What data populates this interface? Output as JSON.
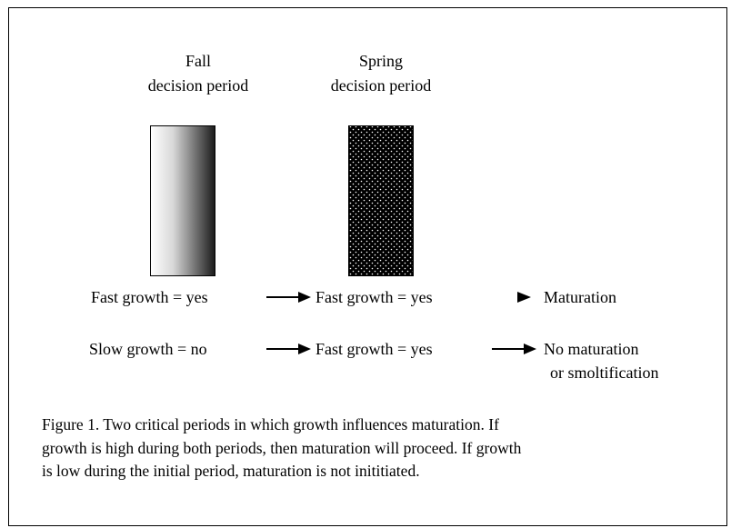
{
  "periods": [
    {
      "title": "Fall",
      "subtitle": "decision period"
    },
    {
      "title": "Spring",
      "subtitle": "decision period"
    }
  ],
  "rows": [
    {
      "fall": "Fast growth = yes",
      "spring": "Fast growth = yes",
      "outcome": [
        "Maturation"
      ]
    },
    {
      "fall": "Slow growth = no",
      "spring": "Fast growth = yes",
      "outcome": [
        "No maturation",
        "or smoltification"
      ]
    }
  ],
  "caption": [
    "Figure 1.  Two critical periods in which growth influences maturation.  If",
    "growth is high during both periods, then maturation will proceed.  If growth",
    "is low during the initial period, maturation is not  inititiated."
  ]
}
